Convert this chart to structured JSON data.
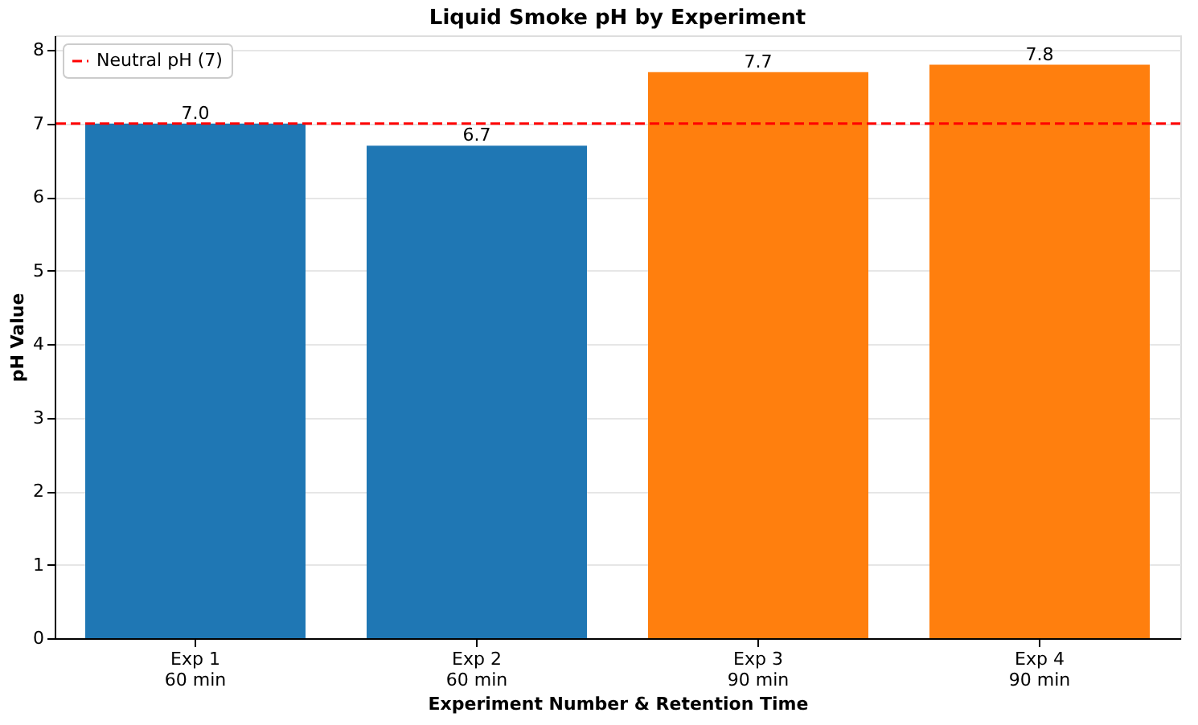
{
  "chart_data": {
    "type": "bar",
    "title": "Liquid Smoke pH by Experiment",
    "xlabel": "Experiment Number & Retention Time",
    "ylabel": "pH Value",
    "categories": [
      "Exp 1\n60 min",
      "Exp 2\n60 min",
      "Exp 3\n90 min",
      "Exp 4\n90 min"
    ],
    "values": [
      7.0,
      6.7,
      7.7,
      7.8
    ],
    "colors": [
      "#1f77b4",
      "#1f77b4",
      "#ff7f0e",
      "#ff7f0e"
    ],
    "ylim": [
      0,
      8.2
    ],
    "yticks": [
      0,
      1,
      2,
      3,
      4,
      5,
      6,
      7,
      8
    ],
    "grid": "y",
    "value_labels": [
      "7.0",
      "6.7",
      "7.7",
      "7.8"
    ],
    "ref_lines": [
      {
        "axis": "y",
        "value": 7,
        "label": "Neutral pH (7)",
        "color": "#ff0000",
        "line_style": "dashed"
      }
    ],
    "legend": "top left"
  }
}
